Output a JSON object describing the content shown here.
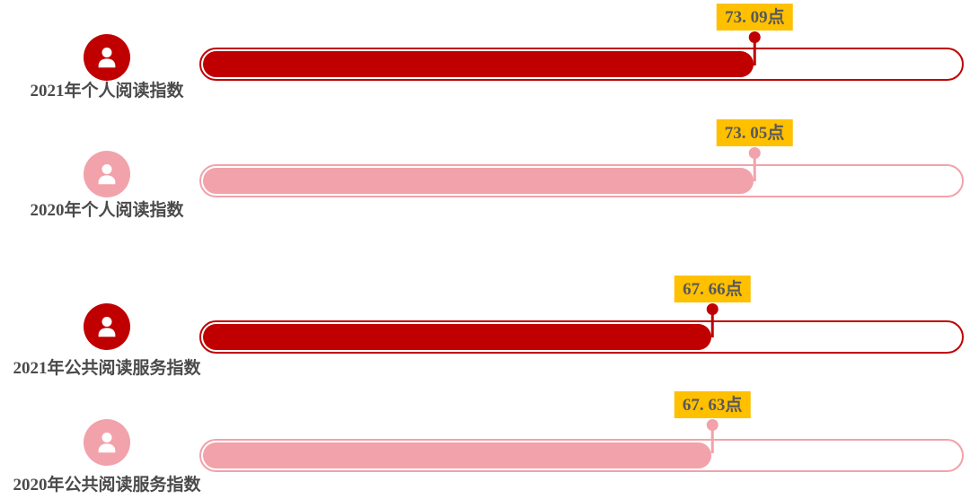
{
  "colors": {
    "red": "#C00000",
    "pink": "#F2A2AA",
    "label_bg": "#FFC000",
    "value_text": "#595959",
    "category_text": "#4A4A4A"
  },
  "chart_data": {
    "type": "bar",
    "orientation": "horizontal",
    "title": "",
    "unit": "点",
    "categories": [
      "2021年个人阅读指数",
      "2020年个人阅读指数",
      "2021年公共阅读服务指数",
      "2020年公共阅读服务指数"
    ],
    "values": [
      73.09,
      73.05,
      67.66,
      67.63
    ],
    "value_labels": [
      "73. 09点",
      "73. 05点",
      "67. 66点",
      "67. 63点"
    ],
    "bar_colors": [
      "#C00000",
      "#F2A2AA",
      "#C00000",
      "#F2A2AA"
    ],
    "legend": "none",
    "grid": false
  },
  "rows": [
    {
      "label": "2021年个人阅读指数",
      "value": 73.09,
      "value_label": "73. 09点",
      "variant": "red"
    },
    {
      "label": "2020年个人阅读指数",
      "value": 73.05,
      "value_label": "73. 05点",
      "variant": "pink"
    },
    {
      "label": "2021年公共阅读服务指数",
      "value": 67.66,
      "value_label": "67. 66点",
      "variant": "red"
    },
    {
      "label": "2020年公共阅读服务指数",
      "value": 67.63,
      "value_label": "67. 63点",
      "variant": "pink"
    }
  ]
}
